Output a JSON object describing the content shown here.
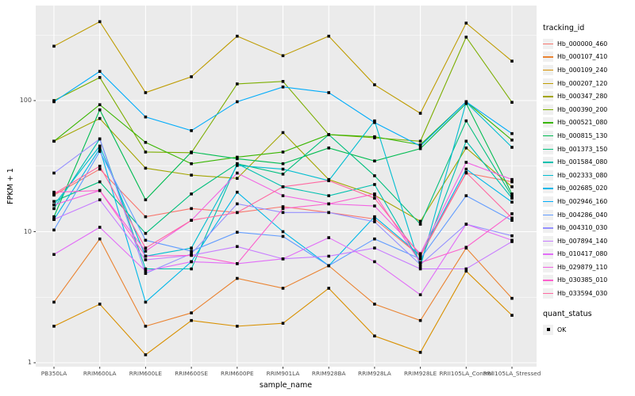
{
  "figure": {
    "y_axis": {
      "title": "FPKM + 1"
    },
    "x_axis": {
      "title": "sample_name"
    },
    "legend": {
      "tracking_title": "tracking_id",
      "quant_title": "quant_status",
      "quant_ok_label": "OK"
    }
  },
  "chart_data": {
    "type": "line",
    "title": "",
    "xlabel": "sample_name",
    "ylabel": "FPKM + 1",
    "y_scale": "log10",
    "ylim": [
      1,
      530
    ],
    "y_ticks": [
      1,
      10,
      100
    ],
    "y_minor_ticks": [
      3.162,
      31.62,
      316.2
    ],
    "grid": "white-on-grey-panel",
    "panel_color": "#ebebeb",
    "grid_color": "#ffffff",
    "tick_text_color": "#4d4d4d",
    "legend_position": "right",
    "point_marker": {
      "shape": "filled-square",
      "color": "#000000",
      "legend_label": "OK"
    },
    "categories": [
      "PB350LA",
      "RRIM600LA",
      "RRIM600LE",
      "RRIM600SE",
      "RRIM600PE",
      "RRIM901LA",
      "RRIM928BA",
      "RRIM928LA",
      "RRIM928LE",
      "RRII105LA_Control",
      "RRII105LA_Stressed"
    ],
    "series": [
      {
        "name": "Hb_000000_460",
        "color": "#F8766D",
        "values": [
          19,
          30,
          13,
          15,
          14,
          15.5,
          14,
          12.5,
          6.5,
          28,
          24
        ]
      },
      {
        "name": "Hb_000107_410",
        "color": "#EA8331",
        "values": [
          2.9,
          8.8,
          1.9,
          2.4,
          4.4,
          3.7,
          5.5,
          2.8,
          2.1,
          7.5,
          3.1
        ]
      },
      {
        "name": "Hb_000109_240",
        "color": "#D89000",
        "values": [
          1.9,
          2.8,
          1.15,
          2.1,
          1.9,
          2.0,
          3.7,
          1.6,
          1.2,
          5.0,
          2.3
        ]
      },
      {
        "name": "Hb_000207_120",
        "color": "#BE9C00",
        "values": [
          260,
          400,
          115,
          152,
          310,
          220,
          310,
          132,
          80,
          390,
          200
        ]
      },
      {
        "name": "Hb_000347_280",
        "color": "#A3A500",
        "values": [
          49,
          73,
          30.5,
          27,
          25.5,
          57,
          25,
          19,
          12,
          43.5,
          22
        ]
      },
      {
        "name": "Hb_000390_200",
        "color": "#7CAE00",
        "values": [
          100,
          150,
          40.5,
          40,
          134,
          140,
          55,
          52,
          49,
          305,
          97
        ]
      },
      {
        "name": "Hb_000521_080",
        "color": "#39B600",
        "values": [
          49,
          93,
          48,
          33,
          37,
          40.5,
          55,
          53,
          46,
          98,
          50
        ]
      },
      {
        "name": "Hb_000815_130",
        "color": "#00BC51",
        "values": [
          13,
          85,
          17.5,
          40.5,
          36,
          33,
          43.5,
          34.6,
          43,
          95,
          19.4
        ]
      },
      {
        "name": "Hb_001373_150",
        "color": "#00BF7D",
        "values": [
          17,
          24,
          9.7,
          19.4,
          33,
          27.5,
          55,
          26.7,
          11.4,
          70,
          18.6
        ]
      },
      {
        "name": "Hb_001584_080",
        "color": "#00C0AF",
        "values": [
          15,
          51,
          5.2,
          5.2,
          33,
          22,
          18.8,
          22.9,
          5.8,
          49,
          18
        ]
      },
      {
        "name": "Hb_002333_080",
        "color": "#00BDD0",
        "values": [
          16,
          45,
          6.5,
          7.5,
          32,
          30,
          24.5,
          70,
          5.4,
          97,
          44
        ]
      },
      {
        "name": "Hb_002685_020",
        "color": "#00B7E8",
        "values": [
          12.4,
          43,
          2.9,
          5.9,
          20,
          10,
          5.5,
          13,
          6.6,
          30,
          16.8
        ]
      },
      {
        "name": "Hb_002946_160",
        "color": "#00ACFA",
        "values": [
          98,
          167,
          75,
          59,
          98,
          127,
          115,
          68,
          45,
          98,
          56
        ]
      },
      {
        "name": "Hb_004286_040",
        "color": "#619CFF",
        "values": [
          10.3,
          41,
          8.6,
          7.1,
          9.9,
          9.2,
          5.5,
          8.8,
          6.2,
          18.8,
          12.2
        ]
      },
      {
        "name": "Hb_004310_030",
        "color": "#9590FF",
        "values": [
          28,
          51,
          4.8,
          6.8,
          16.3,
          14,
          14,
          11.9,
          5.6,
          11.4,
          9.3
        ]
      },
      {
        "name": "Hb_007894_140",
        "color": "#C77CFF",
        "values": [
          12.4,
          17.5,
          6.1,
          6.6,
          7.7,
          6.2,
          6.5,
          7.5,
          5.2,
          5.2,
          8.4
        ]
      },
      {
        "name": "Hb_010417_080",
        "color": "#E26EF7",
        "values": [
          6.7,
          10.8,
          5.0,
          5.9,
          5.7,
          6.2,
          9.0,
          5.9,
          3.3,
          11.4,
          8.6
        ]
      },
      {
        "name": "Hb_029879_110",
        "color": "#F263E3",
        "values": [
          16,
          20.6,
          7.1,
          12.2,
          28,
          18.8,
          16.3,
          15.7,
          6.8,
          33.8,
          25
        ]
      },
      {
        "name": "Hb_030385_010",
        "color": "#FC61CD",
        "values": [
          20,
          20.6,
          6.5,
          6.6,
          5.7,
          15,
          16.3,
          19.4,
          5.8,
          7.6,
          13.7
        ]
      },
      {
        "name": "Hb_033594_030",
        "color": "#FF68A1",
        "values": [
          19.4,
          31.6,
          7.5,
          12.2,
          14,
          22,
          24.5,
          18,
          6.6,
          28.3,
          12.7
        ]
      }
    ]
  }
}
